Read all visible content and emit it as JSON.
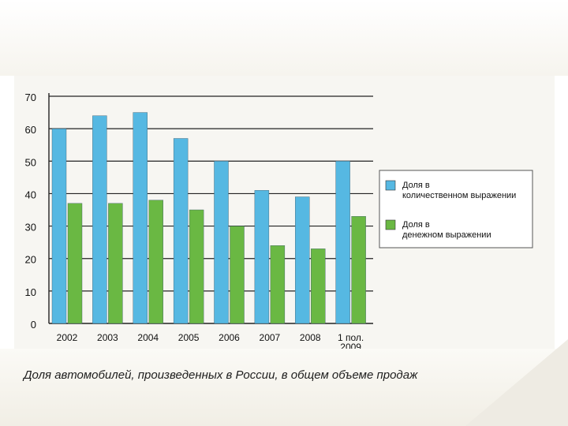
{
  "caption": "Доля автомобилей, произведенных в России, в общем объеме продаж",
  "chart_data": {
    "type": "bar",
    "title": "",
    "xlabel": "",
    "ylabel": "",
    "categories": [
      "2002",
      "2003",
      "2004",
      "2005",
      "2006",
      "2007",
      "2008",
      "1 пол. 2009"
    ],
    "series": [
      {
        "name": "Доля в количественном выражении",
        "color": "#56b8e2",
        "values": [
          60,
          64,
          65,
          57,
          50,
          41,
          39,
          50
        ]
      },
      {
        "name": "Доля в денежном выражении",
        "color": "#6ab843",
        "values": [
          37,
          37,
          38,
          35,
          30,
          24,
          23,
          33
        ]
      }
    ],
    "ylim": [
      0,
      70
    ],
    "yticks": [
      0,
      10,
      20,
      30,
      40,
      50,
      60,
      70
    ],
    "grid": true,
    "legend": "right"
  }
}
